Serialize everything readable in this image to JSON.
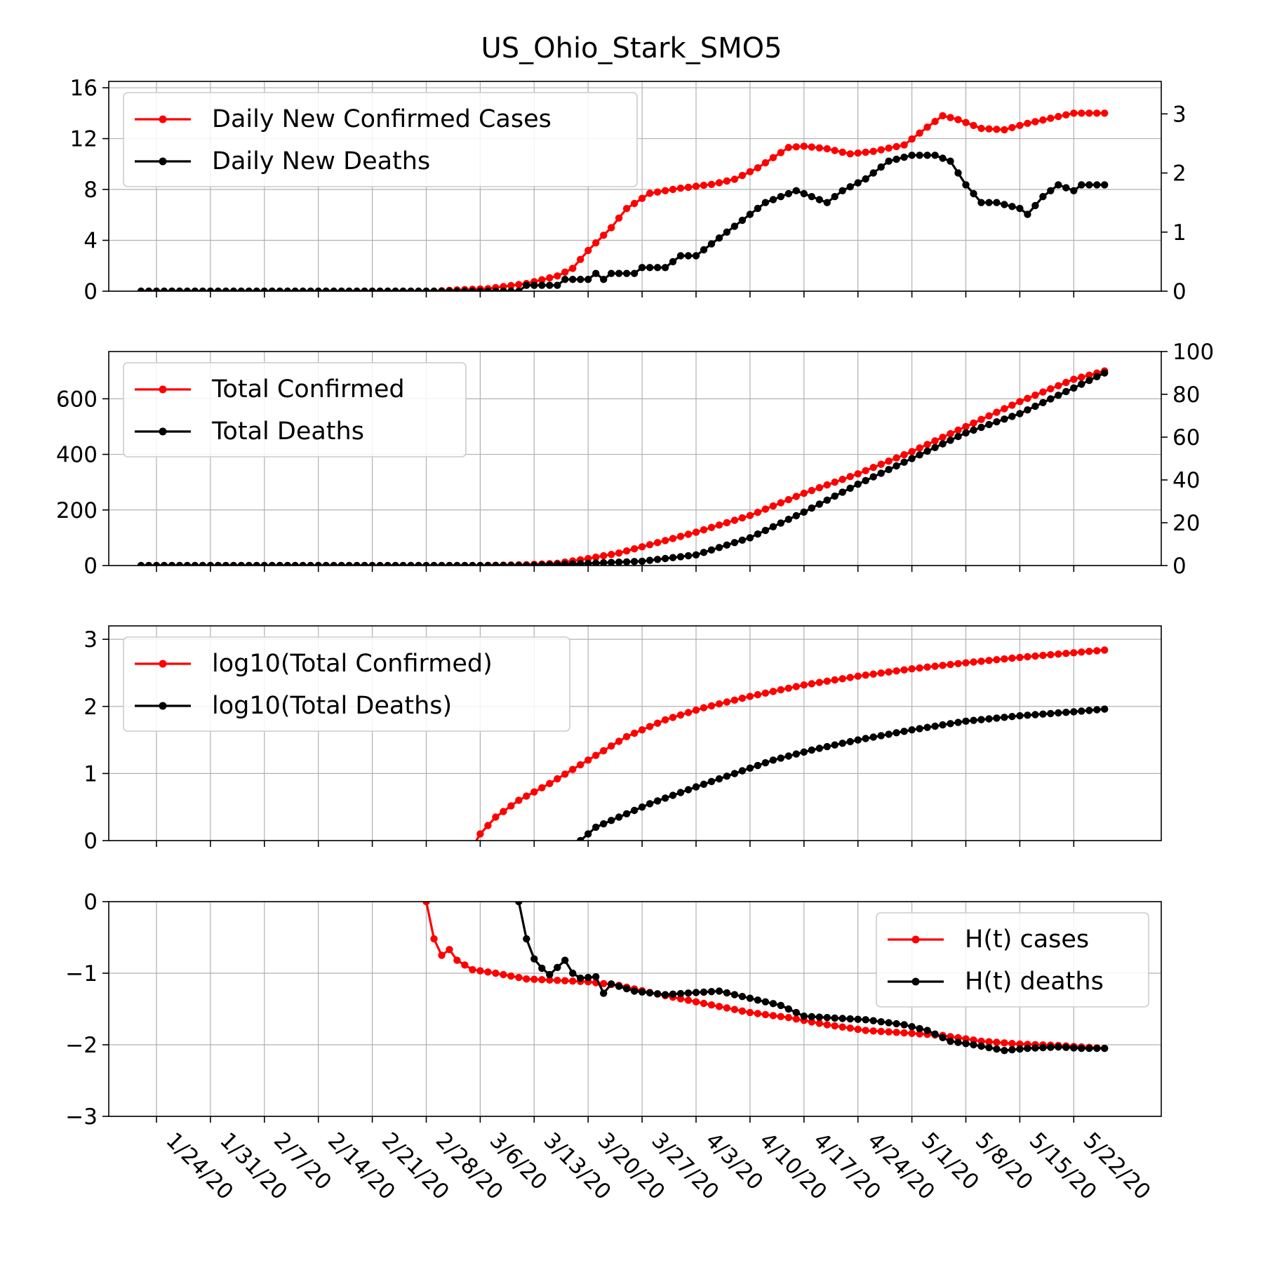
{
  "title": "US_Ohio_Stark_SMO5",
  "x_tick_labels": [
    "1/24/20",
    "1/31/20",
    "2/7/20",
    "2/14/20",
    "2/21/20",
    "2/28/20",
    "3/6/20",
    "3/13/20",
    "3/20/20",
    "3/27/20",
    "4/3/20",
    "4/10/20",
    "4/17/20",
    "4/24/20",
    "5/1/20",
    "5/8/20",
    "5/15/20",
    "5/22/20"
  ],
  "colors": {
    "cases": "#ff0000",
    "deaths": "#000000"
  },
  "chart_data": [
    {
      "type": "line",
      "subplot": 1,
      "x_start": "1/22/20",
      "x_end": "5/26/20",
      "x_step_days": 1,
      "left_axis": {
        "ylim": [
          0,
          16.5
        ],
        "ticks": [
          0,
          4,
          8,
          12,
          16
        ]
      },
      "right_axis": {
        "ylim": [
          0,
          3.55
        ],
        "ticks": [
          0,
          1,
          2,
          3
        ]
      },
      "legend": "top-left",
      "grid": true,
      "series": [
        {
          "name": "Daily New Confirmed Cases",
          "axis": "left",
          "color": "#ff0000",
          "keypoints": [
            [
              "1/22/20",
              0
            ],
            [
              "2/29/20",
              0
            ],
            [
              "3/3/20",
              0.1
            ],
            [
              "3/7/20",
              0.2
            ],
            [
              "3/12/20",
              0.6
            ],
            [
              "3/16/20",
              1.2
            ],
            [
              "3/18/20",
              1.8
            ],
            [
              "3/20/20",
              3.2
            ],
            [
              "3/23/20",
              5
            ],
            [
              "3/25/20",
              6.5
            ],
            [
              "3/28/20",
              7.7
            ],
            [
              "4/1/20",
              8.1
            ],
            [
              "4/5/20",
              8.4
            ],
            [
              "4/8/20",
              8.8
            ],
            [
              "4/11/20",
              9.7
            ],
            [
              "4/15/20",
              11.3
            ],
            [
              "4/17/20",
              11.4
            ],
            [
              "4/20/20",
              11.2
            ],
            [
              "4/23/20",
              10.8
            ],
            [
              "4/26/20",
              11
            ],
            [
              "4/30/20",
              11.5
            ],
            [
              "5/3/20",
              12.9
            ],
            [
              "5/5/20",
              13.8
            ],
            [
              "5/7/20",
              13.5
            ],
            [
              "5/10/20",
              12.8
            ],
            [
              "5/13/20",
              12.7
            ],
            [
              "5/16/20",
              13.2
            ],
            [
              "5/19/20",
              13.6
            ],
            [
              "5/22/20",
              14
            ],
            [
              "5/26/20",
              14
            ]
          ]
        },
        {
          "name": "Daily New Deaths",
          "axis": "right",
          "color": "#000000",
          "keypoints": [
            [
              "1/22/20",
              0
            ],
            [
              "3/11/20",
              0
            ],
            [
              "3/12/20",
              0.1
            ],
            [
              "3/16/20",
              0.1
            ],
            [
              "3/17/20",
              0.2
            ],
            [
              "3/20/20",
              0.2
            ],
            [
              "3/21/20",
              0.3
            ],
            [
              "3/22/20",
              0.2
            ],
            [
              "3/23/20",
              0.3
            ],
            [
              "3/26/20",
              0.3
            ],
            [
              "3/27/20",
              0.4
            ],
            [
              "3/30/20",
              0.4
            ],
            [
              "4/1/20",
              0.6
            ],
            [
              "4/3/20",
              0.6
            ],
            [
              "4/6/20",
              0.9
            ],
            [
              "4/8/20",
              1.1
            ],
            [
              "4/10/20",
              1.3
            ],
            [
              "4/12/20",
              1.5
            ],
            [
              "4/14/20",
              1.6
            ],
            [
              "4/16/20",
              1.7
            ],
            [
              "4/18/20",
              1.6
            ],
            [
              "4/20/20",
              1.5
            ],
            [
              "4/22/20",
              1.7
            ],
            [
              "4/25/20",
              1.9
            ],
            [
              "4/28/20",
              2.2
            ],
            [
              "5/1/20",
              2.3
            ],
            [
              "5/4/20",
              2.3
            ],
            [
              "5/6/20",
              2.2
            ],
            [
              "5/8/20",
              1.8
            ],
            [
              "5/10/20",
              1.5
            ],
            [
              "5/12/20",
              1.5
            ],
            [
              "5/15/20",
              1.4
            ],
            [
              "5/16/20",
              1.3
            ],
            [
              "5/18/20",
              1.6
            ],
            [
              "5/20/20",
              1.8
            ],
            [
              "5/22/20",
              1.7
            ],
            [
              "5/23/20",
              1.8
            ],
            [
              "5/26/20",
              1.8
            ]
          ]
        }
      ]
    },
    {
      "type": "line",
      "subplot": 2,
      "x_start": "1/22/20",
      "x_end": "5/26/20",
      "x_step_days": 1,
      "left_axis": {
        "ylim": [
          0,
          770
        ],
        "ticks": [
          0,
          200,
          400,
          600
        ]
      },
      "right_axis": {
        "ylim": [
          0,
          100
        ],
        "ticks": [
          0,
          20,
          40,
          60,
          80,
          100
        ]
      },
      "legend": "top-left",
      "grid": true,
      "series": [
        {
          "name": "Total Confirmed",
          "axis": "left",
          "color": "#ff0000",
          "keypoints": [
            [
              "1/22/20",
              0
            ],
            [
              "3/6/20",
              0
            ],
            [
              "3/12/20",
              3
            ],
            [
              "3/16/20",
              8
            ],
            [
              "3/20/20",
              25
            ],
            [
              "3/24/20",
              45
            ],
            [
              "3/28/20",
              75
            ],
            [
              "4/3/20",
              120
            ],
            [
              "4/10/20",
              180
            ],
            [
              "4/17/20",
              260
            ],
            [
              "4/24/20",
              330
            ],
            [
              "5/1/20",
              410
            ],
            [
              "5/8/20",
              500
            ],
            [
              "5/15/20",
              590
            ],
            [
              "5/22/20",
              670
            ],
            [
              "5/26/20",
              700
            ]
          ]
        },
        {
          "name": "Total Deaths",
          "axis": "right",
          "color": "#000000",
          "keypoints": [
            [
              "1/22/20",
              0
            ],
            [
              "3/12/20",
              0
            ],
            [
              "3/20/20",
              1
            ],
            [
              "3/27/20",
              2
            ],
            [
              "4/3/20",
              5
            ],
            [
              "4/10/20",
              13
            ],
            [
              "4/17/20",
              25
            ],
            [
              "4/24/20",
              38
            ],
            [
              "5/1/20",
              50
            ],
            [
              "5/8/20",
              62
            ],
            [
              "5/15/20",
              71
            ],
            [
              "5/22/20",
              83
            ],
            [
              "5/26/20",
              90
            ]
          ]
        }
      ]
    },
    {
      "type": "line",
      "subplot": 3,
      "x_start": "1/22/20",
      "x_end": "5/26/20",
      "x_step_days": 1,
      "left_axis": {
        "ylim": [
          0,
          3.2
        ],
        "ticks": [
          0,
          1,
          2,
          3
        ]
      },
      "legend": "top-left",
      "grid": true,
      "series": [
        {
          "name": "log10(Total Confirmed)",
          "axis": "left",
          "color": "#ff0000",
          "keypoints": [
            [
              "3/5/20",
              -0.1
            ],
            [
              "3/6/20",
              0.1
            ],
            [
              "3/8/20",
              0.35
            ],
            [
              "3/11/20",
              0.6
            ],
            [
              "3/15/20",
              0.85
            ],
            [
              "3/20/20",
              1.2
            ],
            [
              "3/25/20",
              1.55
            ],
            [
              "3/30/20",
              1.8
            ],
            [
              "4/4/20",
              1.98
            ],
            [
              "4/10/20",
              2.15
            ],
            [
              "4/17/20",
              2.32
            ],
            [
              "4/24/20",
              2.45
            ],
            [
              "5/1/20",
              2.56
            ],
            [
              "5/8/20",
              2.65
            ],
            [
              "5/15/20",
              2.73
            ],
            [
              "5/22/20",
              2.8
            ],
            [
              "5/26/20",
              2.84
            ]
          ]
        },
        {
          "name": "log10(Total Deaths)",
          "axis": "left",
          "color": "#000000",
          "keypoints": [
            [
              "3/18/20",
              -0.1
            ],
            [
              "3/19/20",
              0
            ],
            [
              "3/21/20",
              0.2
            ],
            [
              "3/24/20",
              0.35
            ],
            [
              "3/28/20",
              0.55
            ],
            [
              "4/3/20",
              0.8
            ],
            [
              "4/8/20",
              1.0
            ],
            [
              "4/13/20",
              1.2
            ],
            [
              "4/18/20",
              1.35
            ],
            [
              "4/24/20",
              1.5
            ],
            [
              "5/1/20",
              1.65
            ],
            [
              "5/8/20",
              1.78
            ],
            [
              "5/15/20",
              1.86
            ],
            [
              "5/22/20",
              1.92
            ],
            [
              "5/26/20",
              1.96
            ]
          ]
        }
      ]
    },
    {
      "type": "line",
      "subplot": 4,
      "x_start": "1/22/20",
      "x_end": "5/26/20",
      "x_step_days": 1,
      "left_axis": {
        "ylim": [
          -3,
          0
        ],
        "ticks": [
          -3,
          -2,
          -1,
          0
        ]
      },
      "legend": "top-right",
      "grid": true,
      "series": [
        {
          "name": "H(t) cases",
          "axis": "left",
          "color": "#ff0000",
          "keypoints": [
            [
              "2/28/20",
              0
            ],
            [
              "2/29/20",
              -0.52
            ],
            [
              "3/1/20",
              -0.75
            ],
            [
              "3/2/20",
              -0.67
            ],
            [
              "3/3/20",
              -0.82
            ],
            [
              "3/5/20",
              -0.95
            ],
            [
              "3/8/20",
              -1.0
            ],
            [
              "3/12/20",
              -1.08
            ],
            [
              "3/16/20",
              -1.1
            ],
            [
              "3/20/20",
              -1.12
            ],
            [
              "3/24/20",
              -1.17
            ],
            [
              "3/28/20",
              -1.27
            ],
            [
              "4/3/20",
              -1.4
            ],
            [
              "4/10/20",
              -1.55
            ],
            [
              "4/15/20",
              -1.62
            ],
            [
              "4/20/20",
              -1.72
            ],
            [
              "4/25/20",
              -1.8
            ],
            [
              "5/1/20",
              -1.84
            ],
            [
              "5/5/20",
              -1.87
            ],
            [
              "5/10/20",
              -1.95
            ],
            [
              "5/15/20",
              -1.99
            ],
            [
              "5/20/20",
              -2.01
            ],
            [
              "5/26/20",
              -2.05
            ]
          ]
        },
        {
          "name": "H(t) deaths",
          "axis": "left",
          "color": "#000000",
          "keypoints": [
            [
              "3/11/20",
              0
            ],
            [
              "3/12/20",
              -0.52
            ],
            [
              "3/13/20",
              -0.8
            ],
            [
              "3/14/20",
              -0.93
            ],
            [
              "3/15/20",
              -1.02
            ],
            [
              "3/16/20",
              -0.92
            ],
            [
              "3/17/20",
              -0.82
            ],
            [
              "3/18/20",
              -1.0
            ],
            [
              "3/19/20",
              -1.07
            ],
            [
              "3/21/20",
              -1.05
            ],
            [
              "3/22/20",
              -1.28
            ],
            [
              "3/23/20",
              -1.15
            ],
            [
              "3/26/20",
              -1.25
            ],
            [
              "3/30/20",
              -1.3
            ],
            [
              "4/3/20",
              -1.27
            ],
            [
              "4/6/20",
              -1.25
            ],
            [
              "4/10/20",
              -1.35
            ],
            [
              "4/14/20",
              -1.45
            ],
            [
              "4/17/20",
              -1.6
            ],
            [
              "4/20/20",
              -1.62
            ],
            [
              "4/25/20",
              -1.65
            ],
            [
              "4/30/20",
              -1.72
            ],
            [
              "5/3/20",
              -1.8
            ],
            [
              "5/6/20",
              -1.95
            ],
            [
              "5/9/20",
              -2.0
            ],
            [
              "5/13/20",
              -2.08
            ],
            [
              "5/16/20",
              -2.05
            ],
            [
              "5/20/20",
              -2.03
            ],
            [
              "5/23/20",
              -2.05
            ],
            [
              "5/26/20",
              -2.05
            ]
          ]
        }
      ]
    }
  ]
}
